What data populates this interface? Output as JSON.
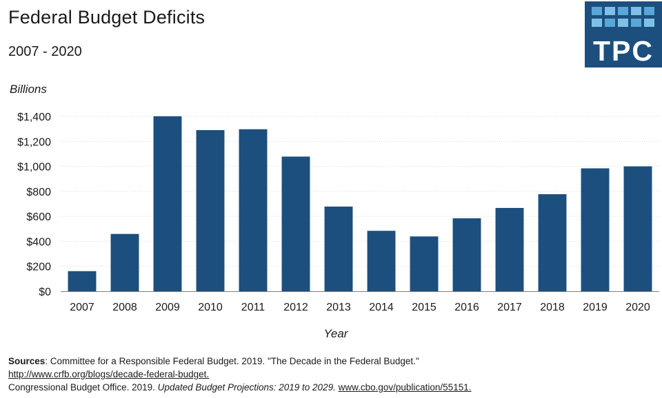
{
  "title": "Federal Budget Deficits",
  "subtitle": "2007 - 2020",
  "logo": {
    "text": "TPC",
    "bg_color": "#1c4f7e",
    "tile_colors": [
      "#5aa6d6",
      "#7fc0e6"
    ]
  },
  "chart_data": {
    "type": "bar",
    "title": "Federal Budget Deficits",
    "subtitle": "2007 - 2020",
    "xlabel": "Year",
    "ylabel": "Billions",
    "categories": [
      "2007",
      "2008",
      "2009",
      "2010",
      "2011",
      "2012",
      "2013",
      "2014",
      "2015",
      "2016",
      "2017",
      "2018",
      "2019",
      "2020"
    ],
    "values": [
      161,
      459,
      1401,
      1290,
      1297,
      1078,
      678,
      484,
      439,
      584,
      667,
      777,
      984,
      1000
    ],
    "ylim": [
      0,
      1400
    ],
    "yticks": [
      0,
      200,
      400,
      600,
      800,
      1000,
      1200,
      1400
    ],
    "ytick_labels": [
      "$0",
      "$200",
      "$400",
      "$600",
      "$800",
      "$1,000",
      "$1,200",
      "$1,400"
    ],
    "grid": true,
    "bar_color": "#1c4f7e"
  },
  "sources": {
    "label": "Sources",
    "line1_text": ": Committee for a Responsible Federal Budget. 2019. \"The Decade in the Federal Budget.\"",
    "line2_link": "http://www.crfb.org/blogs/decade-federal-budget.",
    "line3_text": "Congressional Budget Office. 2019. ",
    "line3_italic": "Updated Budget Projections: 2019 to 2029.",
    "line3_link": "www.cbo.gov/publication/55151."
  }
}
